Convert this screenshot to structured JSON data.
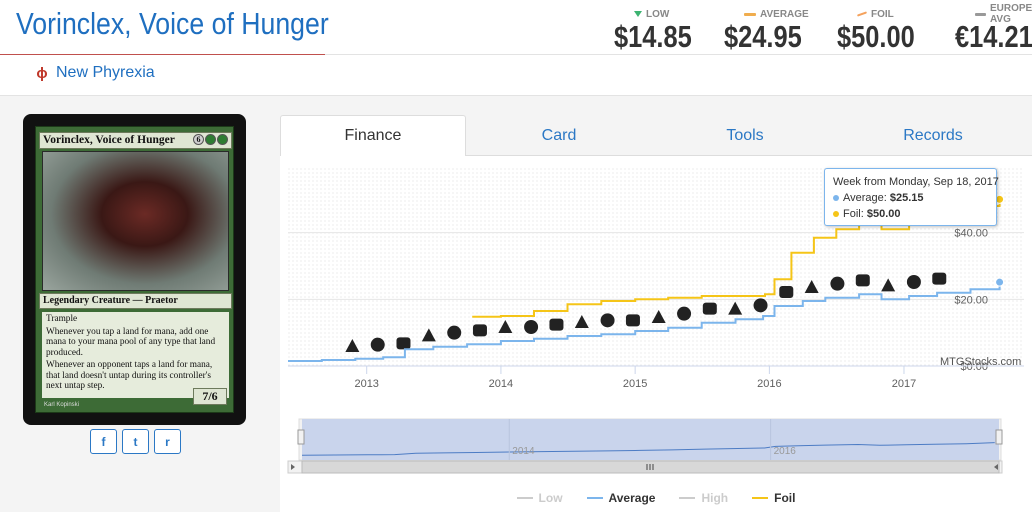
{
  "header": {
    "card_name": "Vorinclex, Voice of Hunger",
    "set_name": "New Phyrexia",
    "set_icon": "phyrexia-symbol"
  },
  "prices": [
    {
      "key": "low",
      "label": "LOW",
      "value": "$14.85",
      "marker_color": "#3cb371"
    },
    {
      "key": "average",
      "label": "AVERAGE",
      "value": "$24.95",
      "marker_color": "#f0ad4e"
    },
    {
      "key": "foil",
      "label": "FOIL",
      "value": "$50.00",
      "marker_color": "#f5a25d"
    },
    {
      "key": "europe",
      "label": "EUROPE AVG",
      "value": "€14.21",
      "marker_color": "#999999"
    }
  ],
  "card_image": {
    "name": "Vorinclex, Voice of Hunger",
    "cost": [
      "6",
      "G",
      "G"
    ],
    "type_line": "Legendary Creature — Praetor",
    "rules": [
      "Trample",
      "Whenever you tap a land for mana, add one mana to your mana pool of any type that land produced.",
      "Whenever an opponent taps a land for mana, that land doesn't untap during its controller's next untap step."
    ],
    "pt": "7/6",
    "artist": "Karl Kopinski"
  },
  "social": [
    {
      "name": "facebook",
      "glyph": "f"
    },
    {
      "name": "twitter",
      "glyph": "t"
    },
    {
      "name": "reddit",
      "glyph": "r"
    }
  ],
  "tabs": [
    {
      "label": "Finance",
      "active": true
    },
    {
      "label": "Card",
      "active": false
    },
    {
      "label": "Tools",
      "active": false
    },
    {
      "label": "Records",
      "active": false
    }
  ],
  "tooltip": {
    "title": "Week from Monday, Sep 18, 2017",
    "average_label": "Average:",
    "average_value": "$25.15",
    "foil_label": "Foil:",
    "foil_value": "$50.00"
  },
  "credit": "MTGStocks.com",
  "chart_data": {
    "type": "line",
    "x_ticks": [
      "2013",
      "2014",
      "2015",
      "2016",
      "2017"
    ],
    "y_ticks": [
      "$0.00",
      "$20.00",
      "$40.00"
    ],
    "ylim": [
      0,
      60
    ],
    "xlim": [
      "2012-06-01",
      "2017-09-30"
    ],
    "grid": true,
    "legend_position": "bottom",
    "series": [
      {
        "name": "Average",
        "color": "#7cb5ec",
        "points": [
          [
            "2012-06-01",
            1.5
          ],
          [
            "2012-09-01",
            1.8
          ],
          [
            "2012-12-01",
            2.2
          ],
          [
            "2013-02-15",
            2.6
          ],
          [
            "2013-04-15",
            5.0
          ],
          [
            "2013-07-01",
            5.8
          ],
          [
            "2013-10-01",
            6.5
          ],
          [
            "2014-01-01",
            7.5
          ],
          [
            "2014-04-01",
            8.2
          ],
          [
            "2014-07-01",
            9.0
          ],
          [
            "2014-10-01",
            9.5
          ],
          [
            "2015-01-01",
            10.5
          ],
          [
            "2015-04-01",
            11.5
          ],
          [
            "2015-07-01",
            13.0
          ],
          [
            "2015-10-01",
            14.0
          ],
          [
            "2015-12-15",
            15.0
          ],
          [
            "2016-01-15",
            18.0
          ],
          [
            "2016-04-01",
            19.5
          ],
          [
            "2016-06-01",
            20.5
          ],
          [
            "2016-09-01",
            21.5
          ],
          [
            "2016-11-01",
            20.0
          ],
          [
            "2017-01-15",
            21.0
          ],
          [
            "2017-04-01",
            22.0
          ],
          [
            "2017-07-01",
            23.0
          ],
          [
            "2017-09-18",
            25.15
          ]
        ]
      },
      {
        "name": "Foil",
        "color": "#f5c518",
        "points": [
          [
            "2013-10-15",
            14.8
          ],
          [
            "2014-01-01",
            15.0
          ],
          [
            "2014-04-01",
            16.5
          ],
          [
            "2014-07-01",
            18.5
          ],
          [
            "2014-10-01",
            19.5
          ],
          [
            "2015-01-01",
            20.0
          ],
          [
            "2015-04-01",
            20.5
          ],
          [
            "2015-07-01",
            21.0
          ],
          [
            "2015-10-01",
            21.0
          ],
          [
            "2015-12-20",
            21.5
          ],
          [
            "2016-01-15",
            26.0
          ],
          [
            "2016-03-01",
            34.0
          ],
          [
            "2016-05-01",
            38.5
          ],
          [
            "2016-07-01",
            41.0
          ],
          [
            "2016-09-01",
            42.5
          ],
          [
            "2016-11-01",
            41.0
          ],
          [
            "2017-01-15",
            43.0
          ],
          [
            "2017-04-01",
            46.0
          ],
          [
            "2017-07-01",
            48.0
          ],
          [
            "2017-09-18",
            50.0
          ]
        ]
      }
    ],
    "legend": [
      {
        "name": "Low",
        "color": "#cccccc",
        "visible": false
      },
      {
        "name": "Average",
        "color": "#7cb5ec",
        "visible": true
      },
      {
        "name": "High",
        "color": "#cccccc",
        "visible": false
      },
      {
        "name": "Foil",
        "color": "#f5c518",
        "visible": true
      }
    ],
    "navigator": {
      "x_ticks": [
        "2014",
        "2016"
      ],
      "selected_range": [
        "2012-06-01",
        "2017-09-30"
      ]
    },
    "release_icon_count": 24
  }
}
